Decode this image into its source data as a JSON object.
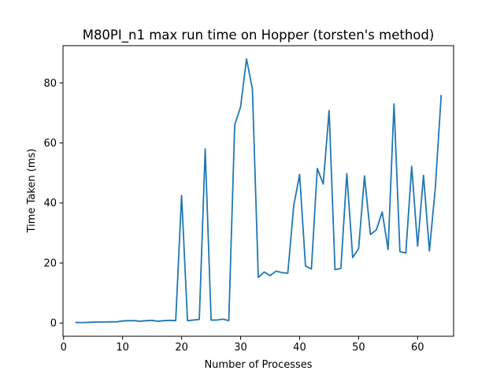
{
  "chart_data": {
    "type": "line",
    "title": "M80PI_n1 max run time on Hopper (torsten's method)",
    "xlabel": "Number of Processes",
    "ylabel": "Time Taken (ms)",
    "xlim": [
      -0.1,
      66.1
    ],
    "ylim": [
      -4.4,
      92.4
    ],
    "xticks": [
      0,
      10,
      20,
      30,
      40,
      50,
      60
    ],
    "yticks": [
      0,
      20,
      40,
      60,
      80
    ],
    "grid": false,
    "legend": "none",
    "line_color": "#1f77b4",
    "series": [
      {
        "x": [
          2,
          3,
          4,
          5,
          6,
          7,
          8,
          9,
          10,
          11,
          12,
          13,
          14,
          15,
          16,
          17,
          18,
          19,
          20,
          21,
          22,
          23,
          24,
          25,
          26,
          27,
          28,
          29,
          30,
          31,
          32,
          33,
          34,
          35,
          36,
          37,
          38,
          39,
          40,
          41,
          42,
          43,
          44,
          45,
          46,
          47,
          48,
          49,
          50,
          51,
          52,
          53,
          54,
          55,
          56,
          57,
          58,
          59,
          60,
          61,
          62,
          63,
          64
        ],
        "values": [
          0.2,
          0.15,
          0.2,
          0.3,
          0.35,
          0.35,
          0.4,
          0.4,
          0.7,
          0.8,
          0.8,
          0.6,
          0.8,
          0.9,
          0.6,
          0.8,
          0.9,
          0.8,
          42.5,
          0.8,
          1.0,
          1.2,
          58.0,
          1.0,
          1.0,
          1.3,
          0.8,
          66.0,
          72.0,
          88.0,
          78.0,
          15.2,
          17.0,
          15.8,
          17.3,
          16.8,
          16.6,
          39.0,
          49.5,
          19.0,
          18.0,
          51.5,
          46.3,
          70.8,
          17.8,
          18.2,
          49.8,
          21.8,
          24.8,
          49.0,
          29.5,
          31.0,
          37.0,
          24.5,
          73.0,
          23.8,
          23.3,
          52.2,
          25.6,
          49.2,
          24.0,
          45.0,
          76.0
        ]
      }
    ]
  }
}
